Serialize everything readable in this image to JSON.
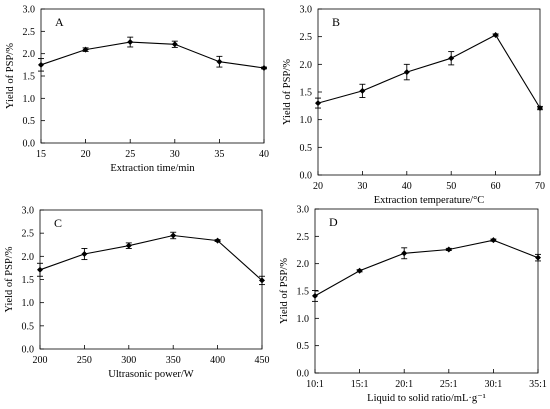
{
  "chart_data": [
    {
      "panel_label": "A",
      "type": "line",
      "xlabel": "Extraction time/min",
      "ylabel": "Yield of PSP/%",
      "x_ticks": [
        "15",
        "20",
        "25",
        "30",
        "35",
        "40"
      ],
      "y_ticks": [
        "0.0",
        "0.5",
        "1.0",
        "1.5",
        "2.0",
        "2.5",
        "3.0"
      ],
      "ylim": [
        0,
        3
      ],
      "series": [
        {
          "x": [
            15,
            20,
            25,
            30,
            35,
            40
          ],
          "values": [
            1.75,
            2.09,
            2.26,
            2.21,
            1.82,
            1.68
          ],
          "errors": [
            0.14,
            0.04,
            0.11,
            0.07,
            0.12,
            0.02
          ]
        }
      ]
    },
    {
      "panel_label": "B",
      "type": "line",
      "xlabel": "Extraction temperature/°C",
      "ylabel": "Yield of PSP/%",
      "x_ticks": [
        "20",
        "30",
        "40",
        "50",
        "60",
        "70"
      ],
      "y_ticks": [
        "0.0",
        "0.5",
        "1.0",
        "1.5",
        "2.0",
        "2.5",
        "3.0"
      ],
      "ylim": [
        0,
        3
      ],
      "series": [
        {
          "x": [
            20,
            30,
            40,
            50,
            60,
            70
          ],
          "values": [
            1.3,
            1.52,
            1.86,
            2.11,
            2.53,
            1.21
          ],
          "errors": [
            0.09,
            0.12,
            0.14,
            0.12,
            0.02,
            0.03
          ]
        }
      ]
    },
    {
      "panel_label": "C",
      "type": "line",
      "xlabel": "Ultrasonic power/W",
      "ylabel": "Yield of PSP/%",
      "x_ticks": [
        "200",
        "250",
        "300",
        "350",
        "400",
        "450"
      ],
      "y_ticks": [
        "0.0",
        "0.5",
        "1.0",
        "1.5",
        "2.0",
        "2.5",
        "3.0"
      ],
      "ylim": [
        0,
        3
      ],
      "series": [
        {
          "x": [
            200,
            250,
            300,
            350,
            400,
            450
          ],
          "values": [
            1.71,
            2.05,
            2.23,
            2.45,
            2.34,
            1.48
          ],
          "errors": [
            0.14,
            0.12,
            0.06,
            0.07,
            0.02,
            0.09
          ]
        }
      ]
    },
    {
      "panel_label": "D",
      "type": "line",
      "xlabel": "Liquid to solid ratio/mL·g⁻¹",
      "ylabel": "Yield of PSP/%",
      "x_ticks": [
        "10:1",
        "15:1",
        "20:1",
        "25:1",
        "30:1",
        "35:1"
      ],
      "y_ticks": [
        "0.0",
        "0.5",
        "1.0",
        "1.5",
        "2.0",
        "2.5",
        "3.0"
      ],
      "ylim": [
        0,
        3
      ],
      "series": [
        {
          "x": [
            10,
            15,
            20,
            25,
            30,
            35
          ],
          "values": [
            1.41,
            1.87,
            2.19,
            2.26,
            2.43,
            2.11
          ],
          "errors": [
            0.1,
            0.02,
            0.1,
            0.02,
            0.02,
            0.06
          ]
        }
      ]
    }
  ]
}
